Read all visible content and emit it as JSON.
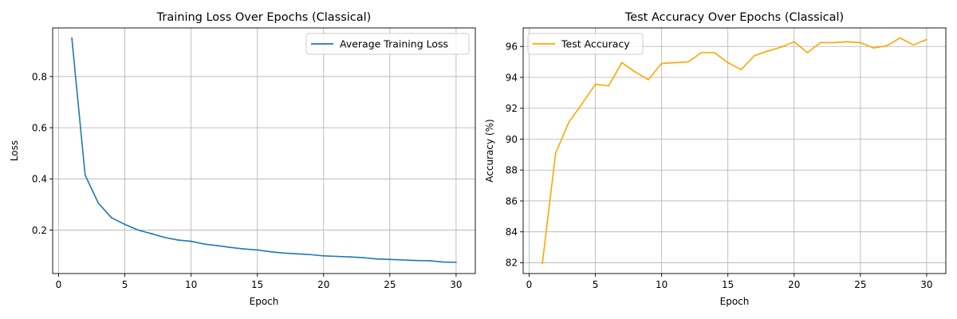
{
  "chart_data": [
    {
      "type": "line",
      "title": "Training Loss Over Epochs (Classical)",
      "xlabel": "Epoch",
      "ylabel": "Loss",
      "xlim": [
        -0.45,
        31.45
      ],
      "ylim": [
        0.03,
        0.99
      ],
      "xticks": [
        0,
        5,
        10,
        15,
        20,
        25,
        30
      ],
      "yticks": [
        0.2,
        0.4,
        0.6,
        0.8
      ],
      "ytick_labels": [
        "0.2",
        "0.4",
        "0.6",
        "0.8"
      ],
      "grid": true,
      "legend_position": "upper right",
      "series": [
        {
          "name": "Average Training Loss",
          "color": "#1f77b4",
          "x": [
            1,
            2,
            3,
            4,
            5,
            6,
            7,
            8,
            9,
            10,
            11,
            12,
            13,
            14,
            15,
            16,
            17,
            18,
            19,
            20,
            21,
            22,
            23,
            24,
            25,
            26,
            27,
            28,
            29,
            30
          ],
          "values": [
            0.95,
            0.415,
            0.305,
            0.248,
            0.222,
            0.2,
            0.186,
            0.171,
            0.161,
            0.156,
            0.145,
            0.139,
            0.132,
            0.126,
            0.122,
            0.115,
            0.11,
            0.107,
            0.104,
            0.099,
            0.097,
            0.095,
            0.092,
            0.087,
            0.085,
            0.083,
            0.081,
            0.08,
            0.075,
            0.074
          ]
        }
      ]
    },
    {
      "type": "line",
      "title": "Test Accuracy Over Epochs (Classical)",
      "xlabel": "Epoch",
      "ylabel": "Accuracy (%)",
      "xlim": [
        -0.45,
        31.45
      ],
      "ylim": [
        81.3,
        97.2
      ],
      "xticks": [
        0,
        5,
        10,
        15,
        20,
        25,
        30
      ],
      "yticks": [
        82,
        84,
        86,
        88,
        90,
        92,
        94,
        96
      ],
      "ytick_labels": [
        "82",
        "84",
        "86",
        "88",
        "90",
        "92",
        "94",
        "96"
      ],
      "grid": true,
      "legend_position": "upper left",
      "series": [
        {
          "name": "Test Accuracy",
          "color": "#ffa500",
          "x": [
            1,
            2,
            3,
            4,
            5,
            6,
            7,
            8,
            9,
            10,
            11,
            12,
            13,
            14,
            15,
            16,
            17,
            18,
            19,
            20,
            21,
            22,
            23,
            24,
            25,
            26,
            27,
            28,
            29,
            30
          ],
          "values": [
            81.95,
            89.1,
            91.1,
            92.3,
            93.55,
            93.45,
            94.95,
            94.35,
            93.85,
            94.9,
            94.95,
            95.0,
            95.6,
            95.6,
            94.95,
            94.5,
            95.4,
            95.7,
            95.95,
            96.3,
            95.6,
            96.25,
            96.25,
            96.3,
            96.25,
            95.9,
            96.05,
            96.55,
            96.1,
            96.45
          ]
        }
      ]
    }
  ]
}
